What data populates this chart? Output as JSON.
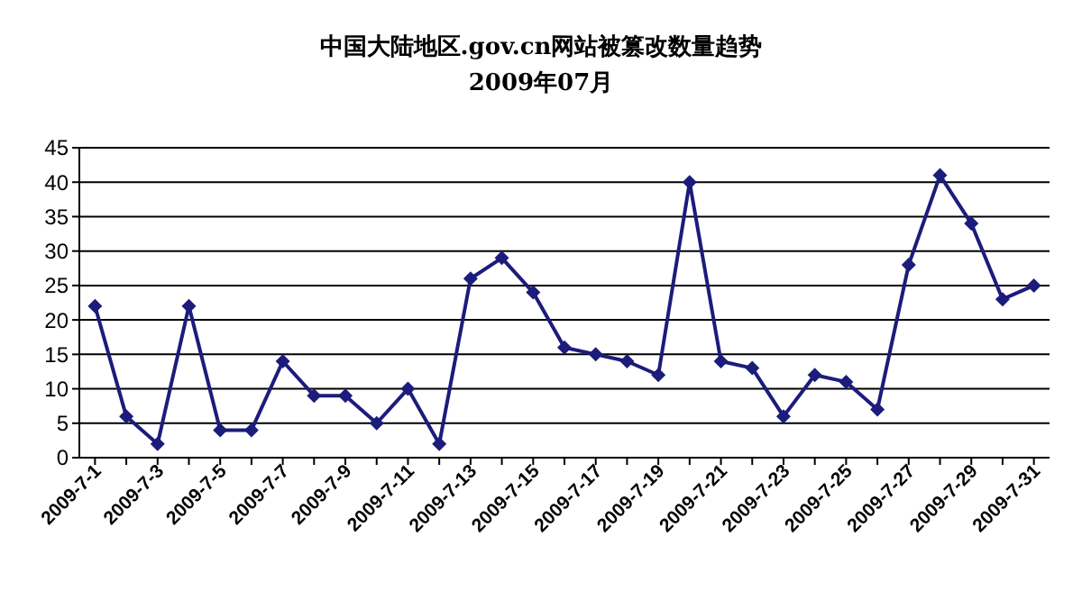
{
  "chart_data": {
    "type": "line",
    "title": "中国大陆地区.gov.cn网站被篡改数量趋势",
    "subtitle": "2009年07月",
    "categories": [
      "2009-7-1",
      null,
      "2009-7-3",
      null,
      "2009-7-5",
      null,
      "2009-7-7",
      null,
      "2009-7-9",
      null,
      "2009-7-11",
      null,
      "2009-7-13",
      null,
      "2009-7-15",
      null,
      "2009-7-17",
      null,
      "2009-7-19",
      null,
      "2009-7-21",
      null,
      "2009-7-23",
      null,
      "2009-7-25",
      null,
      "2009-7-27",
      null,
      "2009-7-29",
      null,
      "2009-7-31"
    ],
    "series": [
      {
        "color": "#1c1c7c",
        "values": [
          22,
          6,
          2,
          22,
          4,
          4,
          14,
          9,
          9,
          5,
          10,
          2,
          26,
          29,
          24,
          16,
          15,
          14,
          12,
          40,
          14,
          13,
          6,
          12,
          11,
          7,
          28,
          41,
          34,
          23,
          25
        ]
      }
    ],
    "ylim": [
      0,
      45
    ],
    "yticks": [
      0,
      5,
      10,
      15,
      20,
      25,
      30,
      35,
      40,
      45
    ],
    "grid": "y",
    "marker": "diamond"
  }
}
